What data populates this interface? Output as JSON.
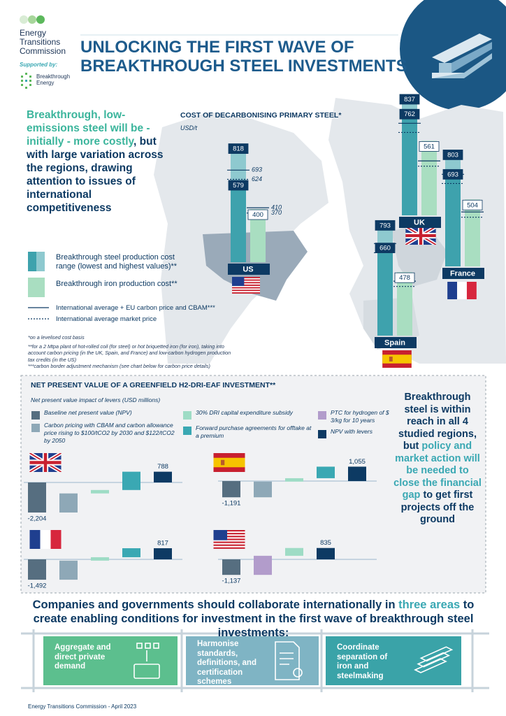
{
  "header": {
    "org": [
      "Energy",
      "Transitions",
      "Commission"
    ],
    "supported_by": "Supported by:",
    "sponsor": [
      "Breakthrough",
      "Energy"
    ],
    "title": [
      "UNLOCKING THE FIRST WAVE OF",
      "BREAKTHROUGH STEEL INVESTMENTS"
    ]
  },
  "intro": [
    {
      "text": "Breakthrough, low-emissions steel will be - initially - more costly",
      "color": "#3bb59c"
    },
    {
      "text": ", but with large variation across the regions, drawing attention to issues of international competitiveness",
      "color": "#0d3a63"
    }
  ],
  "cost_chart": {
    "title": "COST OF DECARBONISING PRIMARY STEEL*",
    "unit": "USD/t",
    "regions": [
      {
        "name": "US",
        "steel": [
          579,
          818
        ],
        "iron": 400
      },
      {
        "name": "UK",
        "steel": [
          762,
          837
        ],
        "iron": 561
      },
      {
        "name": "France",
        "steel": [
          693,
          803
        ],
        "iron": 504
      },
      {
        "name": "Spain",
        "steel": [
          660,
          793
        ],
        "iron": 478
      }
    ],
    "reference": {
      "steel": [
        693,
        624
      ],
      "iron": [
        410,
        370
      ]
    },
    "colors": {
      "steel_low": "#3ea2ad",
      "steel_high": "#8ec9cf",
      "iron": "#a9dec1",
      "label": "#0d3a63"
    },
    "legend": [
      "Breakthrough steel production cost range (lowest and highest values)**",
      "Breakthrough iron production cost**",
      "International average + EU carbon price and CBAM***",
      "International average market price"
    ],
    "notes": [
      "*on a levelised cost basis",
      "**for a 2 Mtpa plant of hot-rolled coil (for steel) or hot briquetted iron (for iron), taking into account carbon pricing (in the UK, Spain, and France) and low-carbon hydrogen production tax credits (in the US)",
      "***carbon border adjustment mechanism (see chart below for carbon price details)"
    ]
  },
  "npv": {
    "title": "NET PRESENT VALUE OF A GREENFIELD H2-DRI-EAF INVESTMENT**",
    "subtitle": "Net present value impact of levers (USD millions)",
    "levers": [
      {
        "name": "Baseline net present value (NPV)",
        "color": "#566e80"
      },
      {
        "name": "Carbon pricing with CBAM and carbon allowance price rising to $100/tCO2 by 2030 and $122/tCO2 by 2050",
        "color": "#8ea8b7"
      },
      {
        "name": "30% DRI capital expenditure subsidy",
        "color": "#9edcc5"
      },
      {
        "name": "Forward purchase agreements for offtake at a premium",
        "color": "#3aa8b3"
      },
      {
        "name": "PTC for hydrogen of $ 3/kg for 10 years",
        "color": "#b29ccb"
      },
      {
        "name": "NPV with levers",
        "color": "#0d3a63"
      }
    ],
    "countries": [
      {
        "values": [
          -2204,
          1400,
          250,
          1342,
          788
        ],
        "value_labels": [
          "-2,204",
          null,
          null,
          null,
          "788"
        ],
        "colors": [
          "#566e80",
          "#8ea8b7",
          "#9edcc5",
          "#3aa8b3",
          "#0d3a63"
        ]
      },
      {
        "values": [
          -1191,
          1150,
          250,
          846,
          1055
        ],
        "value_labels": [
          "-1,191",
          null,
          null,
          null,
          "1,055"
        ],
        "colors": [
          "#566e80",
          "#8ea8b7",
          "#9edcc5",
          "#3aa8b3",
          "#0d3a63"
        ]
      },
      {
        "values": [
          -1492,
          1400,
          250,
          659,
          817
        ],
        "value_labels": [
          "-1,492",
          null,
          null,
          null,
          "817"
        ],
        "colors": [
          "#566e80",
          "#8ea8b7",
          "#9edcc5",
          "#3aa8b3",
          "#0d3a63"
        ]
      },
      {
        "values": [
          -1137,
          1400,
          572,
          835
        ],
        "value_labels": [
          "-1,137",
          null,
          null,
          "835"
        ],
        "colors": [
          "#566e80",
          "#b29ccb",
          "#9edcc5",
          "#0d3a63"
        ]
      }
    ],
    "message": [
      {
        "text": "Breakthrough steel is within reach in all 4 studied regions, but ",
        "color": "#0d3a63"
      },
      {
        "text": "policy and market action will be needed to close the financial gap",
        "color": "#3aa8b3"
      },
      {
        "text": " to get first projects off the ground",
        "color": "#0d3a63"
      }
    ]
  },
  "actions": {
    "heading": [
      {
        "text": "Companies and governments should collaborate internationally in ",
        "color": "#0d3a63"
      },
      {
        "text": "three areas",
        "color": "#3aa8b3"
      },
      {
        "text": " to create enabling conditions for investment in the first wave of breakthrough steel investments:",
        "color": "#0d3a63"
      }
    ],
    "items": [
      {
        "text": "Aggregate and direct private demand",
        "color": "#5cbf8e"
      },
      {
        "text": "Harmonise standards, definitions, and certification schemes",
        "color": "#7fb4c4"
      },
      {
        "text": "Coordinate separation of iron and steelmaking",
        "color": "#3aa3a8"
      }
    ]
  },
  "footer": "Energy Transitions Commission - April 2023"
}
